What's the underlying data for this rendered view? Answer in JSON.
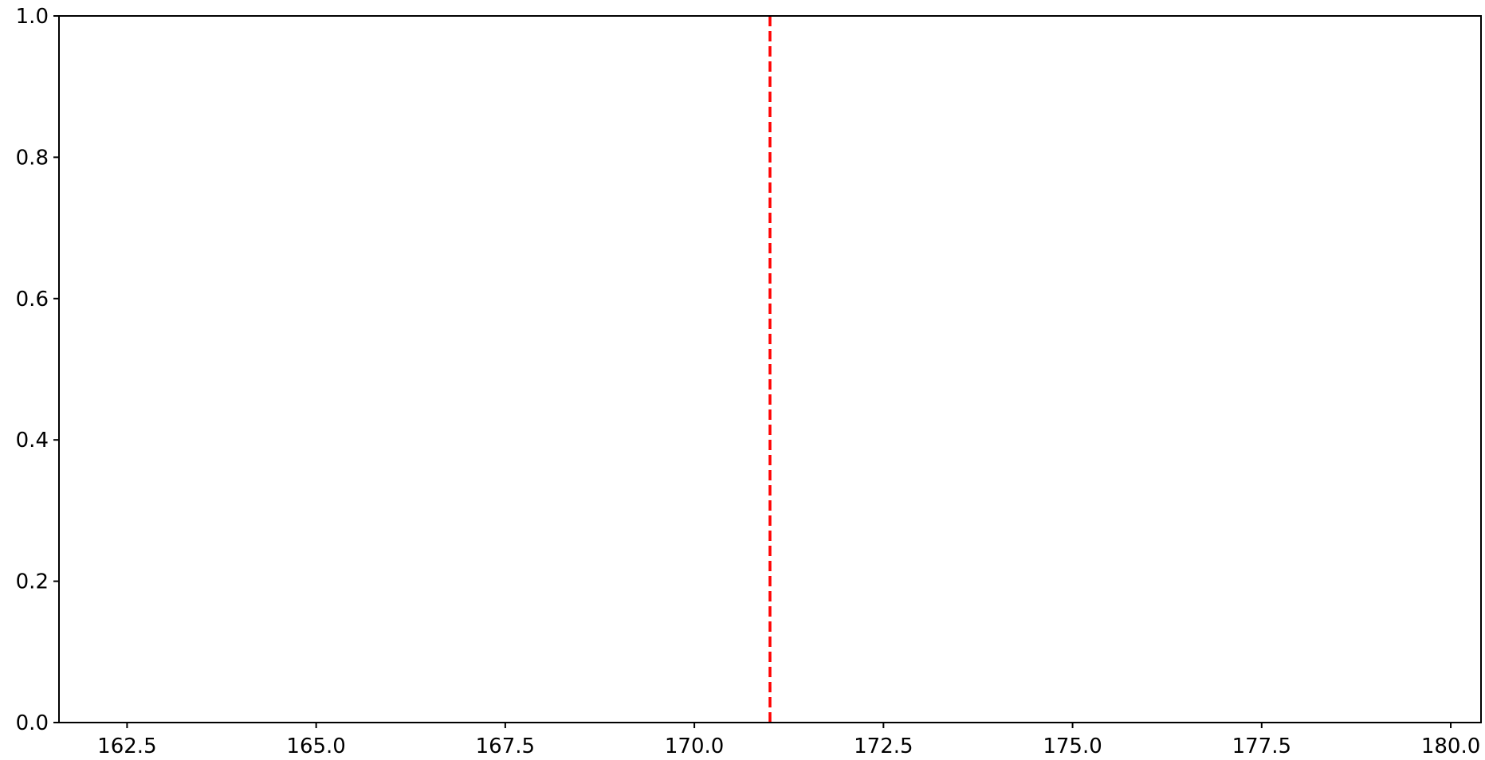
{
  "chart_data": {
    "type": "line",
    "title": "",
    "xlabel": "",
    "ylabel": "",
    "xlim": [
      161.6,
      180.4
    ],
    "ylim": [
      0.0,
      1.0
    ],
    "x_ticks": [
      162.5,
      165.0,
      167.5,
      170.0,
      172.5,
      175.0,
      177.5,
      180.0
    ],
    "x_tick_labels": [
      "162.5",
      "165.0",
      "167.5",
      "170.0",
      "172.5",
      "175.0",
      "177.5",
      "180.0"
    ],
    "y_ticks": [
      0.0,
      0.2,
      0.4,
      0.6,
      0.8,
      1.0
    ],
    "y_tick_labels": [
      "0.0",
      "0.2",
      "0.4",
      "0.6",
      "0.8",
      "1.0"
    ],
    "grid": false,
    "legend": "none",
    "series": [],
    "vertical_lines": [
      {
        "x": 171.0,
        "color": "#ff0000",
        "style": "dashed"
      }
    ]
  }
}
